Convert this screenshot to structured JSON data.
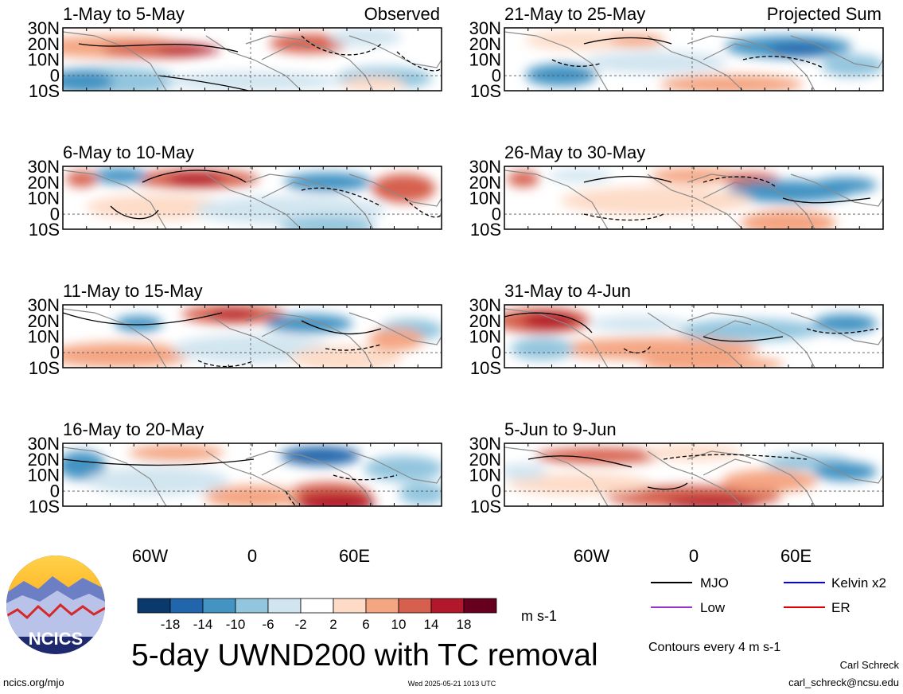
{
  "columns": [
    {
      "header": "Observed",
      "panels": [
        {
          "label": "1-May to 5-May"
        },
        {
          "label": "6-May to 10-May"
        },
        {
          "label": "11-May to 15-May"
        },
        {
          "label": "16-May to 20-May"
        }
      ]
    },
    {
      "header": "Projected Sum",
      "panels": [
        {
          "label": "21-May to 25-May"
        },
        {
          "label": "26-May to 30-May"
        },
        {
          "label": "31-May to 4-Jun"
        },
        {
          "label": "5-Jun to 9-Jun"
        }
      ]
    }
  ],
  "lat_labels": [
    "30N",
    "20N",
    "10N",
    "0",
    "10S"
  ],
  "lon_labels": [
    "60W",
    "0",
    "60E"
  ],
  "colorbar": {
    "colors": [
      "#0a3a6b",
      "#2166ac",
      "#4393c3",
      "#92c5de",
      "#d1e5f0",
      "#ffffff",
      "#fddbc7",
      "#f4a582",
      "#d6604d",
      "#b2182b",
      "#67001f"
    ],
    "tick_labels": [
      "-18",
      "-14",
      "-10",
      "-6",
      "-2",
      "2",
      "6",
      "10",
      "14",
      "18"
    ],
    "units": "m s-1"
  },
  "legend": {
    "items": [
      {
        "label": "MJO",
        "color": "#000000"
      },
      {
        "label": "Kelvin x2",
        "color": "#0000ff"
      },
      {
        "label": "Low",
        "color": "#9933cc"
      },
      {
        "label": "ER",
        "color": "#dd0000"
      }
    ],
    "contour_note": "Contours every 4 m s-1"
  },
  "logo": {
    "text": "NCICS"
  },
  "title": "5-day UWND200 with TC removal",
  "footer": {
    "left": "ncics.org/mjo",
    "center": "Wed 2025-05-21 1013 UTC",
    "right_name": "Carl Schreck",
    "right_email": "carl_schreck@ncsu.edu"
  }
}
